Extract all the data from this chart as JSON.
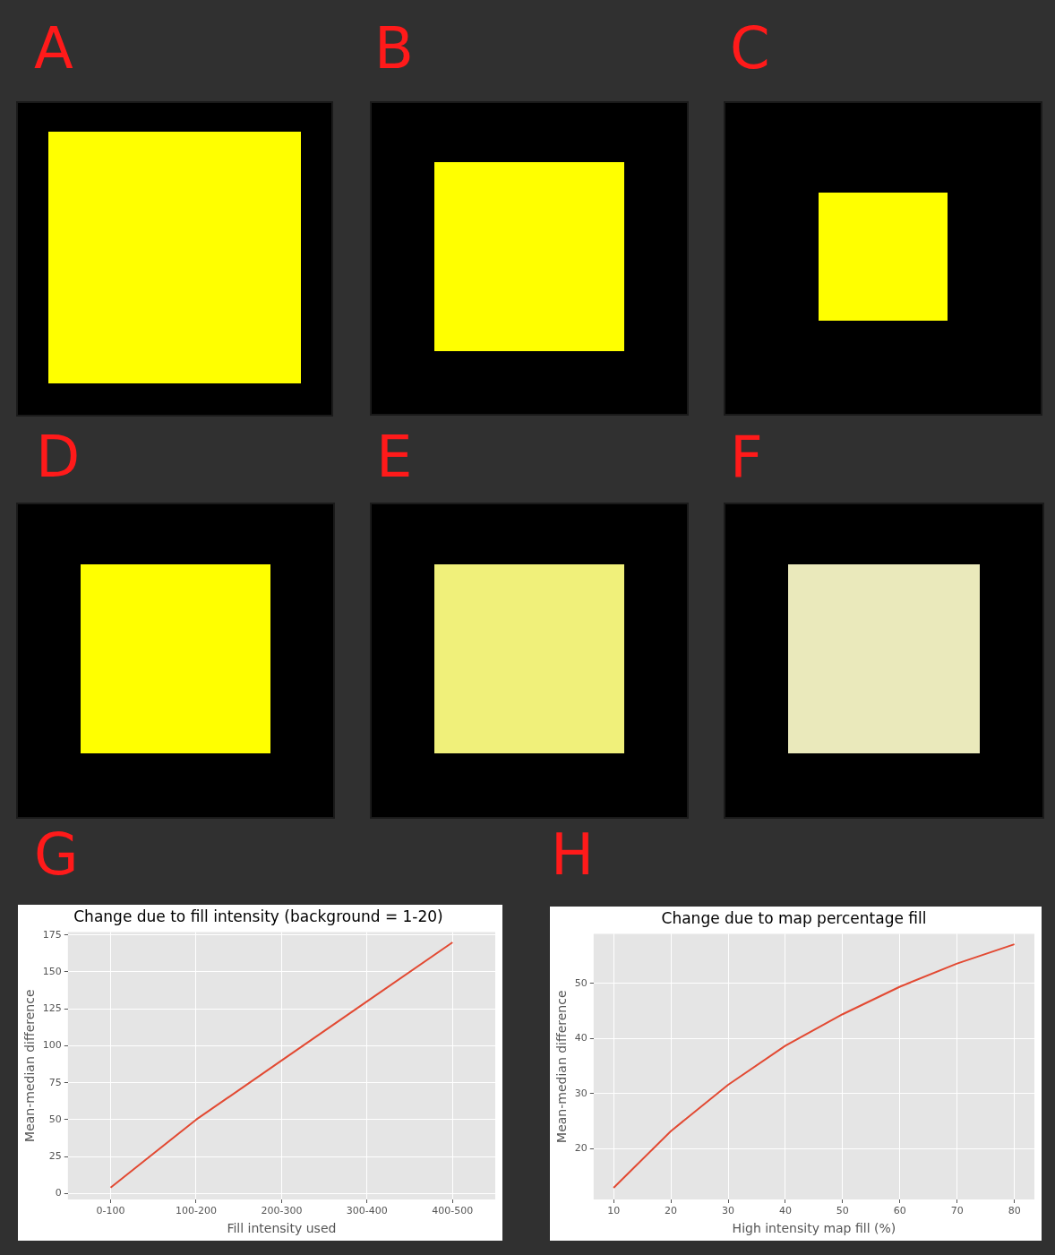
{
  "chart_data": [
    {
      "type": "other",
      "annotations": [
        "A",
        "B",
        "C",
        "D",
        "E",
        "F"
      ]
    },
    {
      "type": "line",
      "title": "Change due to fill intensity (background = 1-20)",
      "xlabel": "Fill intensity used",
      "ylabel": "Mean-median difference",
      "annotations": [
        "G"
      ],
      "categories": [
        "0-100",
        "100-200",
        "200-300",
        "300-400",
        "400-500"
      ],
      "series": [
        {
          "color": "#e24a33",
          "values": [
            4,
            50,
            90,
            130,
            170
          ]
        }
      ],
      "ylim": [
        -4,
        177
      ],
      "yticks": [
        0,
        25,
        50,
        75,
        100,
        125,
        150,
        175
      ],
      "grid": true,
      "legend": false,
      "marker": "none",
      "line_style": "solid"
    },
    {
      "type": "line",
      "title": "Change due to map percentage fill",
      "xlabel": "High intensity map fill (%)",
      "ylabel": "Mean-median difference",
      "annotations": [
        "H"
      ],
      "x": [
        10,
        20,
        30,
        40,
        50,
        60,
        70,
        80
      ],
      "series": [
        {
          "color": "#e24a33",
          "values": [
            12.9,
            23.2,
            31.6,
            38.7,
            44.4,
            49.4,
            53.6,
            57.1
          ]
        }
      ],
      "xlim": [
        6.5,
        83.5
      ],
      "xticks": [
        10,
        20,
        30,
        40,
        50,
        60,
        70,
        80
      ],
      "ylim": [
        10.8,
        59
      ],
      "yticks": [
        20,
        30,
        40,
        50
      ],
      "grid": true,
      "legend": false,
      "marker": "none",
      "line_style": "solid"
    }
  ]
}
